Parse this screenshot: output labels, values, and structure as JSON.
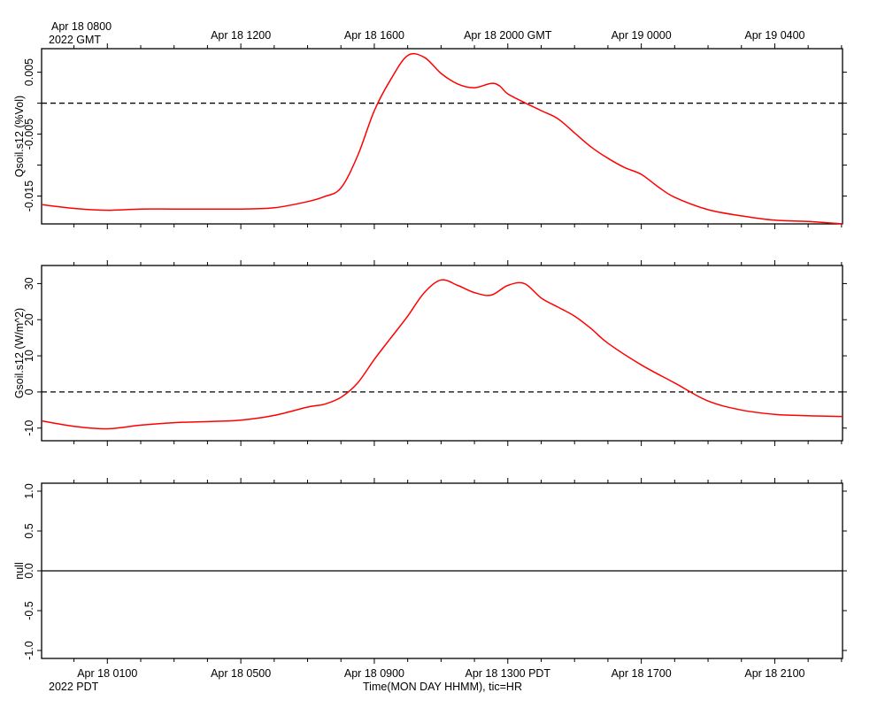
{
  "time_axis": {
    "top_header": [
      "Apr 18 0800",
      "2022 GMT"
    ],
    "top_ticks": [
      "Apr 18 1200",
      "Apr 18 1600",
      "Apr 18 2000 GMT",
      "Apr 19 0000",
      "Apr 19 0400"
    ],
    "bottom_ticks": [
      "Apr 18 0100",
      "Apr 18 0500",
      "Apr 18 0900",
      "Apr 18 1300 PDT",
      "Apr 18 1700",
      "Apr 18 2100"
    ],
    "bottom_year": "2022 PDT",
    "xlabel": "Time(MON DAY HHMM), tic=HR"
  },
  "chart_data": [
    {
      "type": "line",
      "ylabel": "Qsoil.s12 (%Vol)",
      "x_unit": "hours since Apr 18 00:00 PDT",
      "xlim": [
        -0.97,
        23.03
      ],
      "ylim": [
        -0.0195,
        0.0088
      ],
      "yticks": [
        0.005,
        -0.005,
        -0.015
      ],
      "ytick_labels": [
        "0.005",
        "-0.005",
        "-0.015"
      ],
      "minor_yticks": [
        0.005,
        0.0,
        -0.005,
        -0.01,
        -0.015
      ],
      "ref_line": 0,
      "series": [
        {
          "color": "#ff0000",
          "x": [
            -0.97,
            0,
            1,
            2,
            3,
            4,
            5,
            6,
            7,
            7.5,
            8,
            8.5,
            9,
            9.5,
            10,
            10.5,
            11,
            11.5,
            12,
            12.5,
            12.75,
            13,
            13.5,
            14,
            14.5,
            15,
            15.5,
            16,
            16.5,
            17,
            17.5,
            18,
            19,
            20,
            21,
            22,
            23.03
          ],
          "y": [
            -0.0164,
            -0.017,
            -0.0173,
            -0.0171,
            -0.0171,
            -0.0171,
            -0.0171,
            -0.0169,
            -0.0159,
            -0.0151,
            -0.0137,
            -0.0085,
            -0.0012,
            0.0039,
            0.0077,
            0.0074,
            0.0048,
            0.0031,
            0.0025,
            0.0032,
            0.0028,
            0.0015,
            0.0001,
            -0.0012,
            -0.0025,
            -0.0048,
            -0.0071,
            -0.0089,
            -0.0104,
            -0.0115,
            -0.0135,
            -0.0152,
            -0.0172,
            -0.0182,
            -0.0189,
            -0.0191,
            -0.0195
          ]
        }
      ]
    },
    {
      "type": "line",
      "ylabel": "Gsoil.s12 (W/m^2)",
      "x_unit": "hours since Apr 18 00:00 PDT",
      "xlim": [
        -0.97,
        23.03
      ],
      "ylim": [
        -13.5,
        35
      ],
      "yticks": [
        30,
        20,
        10,
        0,
        -10
      ],
      "ytick_labels": [
        "30",
        "20",
        "10",
        "0",
        "-10"
      ],
      "ref_line": 0,
      "series": [
        {
          "color": "#ff0000",
          "x": [
            -0.97,
            0,
            1,
            2,
            3,
            4,
            5,
            6,
            7,
            7.5,
            8,
            8.5,
            9,
            9.5,
            10,
            10.5,
            11,
            11.5,
            12,
            12.5,
            13,
            13.5,
            14,
            14.5,
            15,
            15.5,
            16,
            17,
            18,
            19,
            20,
            21,
            22,
            23.03
          ],
          "y": [
            -8,
            -9.5,
            -10.2,
            -9.2,
            -8.5,
            -8.2,
            -7.8,
            -6.5,
            -4.2,
            -3.4,
            -1.5,
            2.5,
            9,
            15,
            21,
            27.5,
            31,
            29.5,
            27.5,
            26.8,
            29.5,
            30,
            26,
            23.5,
            21,
            17.5,
            13.5,
            7.5,
            2.5,
            -2.5,
            -5,
            -6.2,
            -6.6,
            -6.8
          ]
        }
      ]
    },
    {
      "type": "line",
      "ylabel": "null",
      "x_unit": "hours since Apr 18 00:00 PDT",
      "xlim": [
        -0.97,
        23.03
      ],
      "ylim": [
        -1.1,
        1.1
      ],
      "yticks": [
        1.0,
        0.5,
        0.0,
        -0.5,
        -1.0
      ],
      "ytick_labels": [
        "1.0",
        "0.5",
        "0.0",
        "-0.5",
        "-1.0"
      ],
      "ref_line": 0,
      "series": []
    }
  ]
}
